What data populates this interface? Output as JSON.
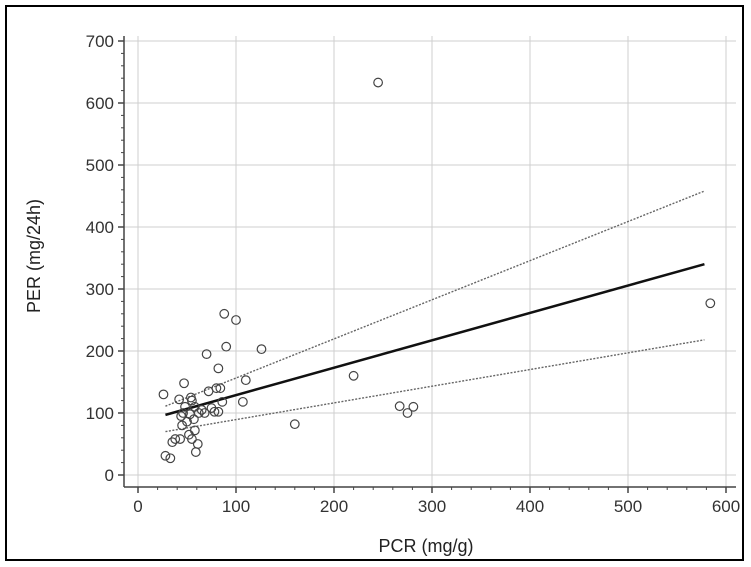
{
  "chart_data": {
    "type": "scatter",
    "xlabel": "PCR (mg/g)",
    "ylabel": "PER (mg/24h)",
    "xlim": [
      -15,
      610
    ],
    "ylim": [
      -15,
      715
    ],
    "x_ticks": [
      0,
      100,
      200,
      300,
      400,
      500,
      600
    ],
    "y_ticks": [
      0,
      100,
      200,
      300,
      400,
      500,
      600,
      700
    ],
    "grid": true,
    "legend": "none",
    "points": [
      [
        26,
        130
      ],
      [
        28,
        31
      ],
      [
        33,
        27
      ],
      [
        35,
        53
      ],
      [
        38,
        58
      ],
      [
        42,
        122
      ],
      [
        43,
        58
      ],
      [
        44,
        95
      ],
      [
        45,
        80
      ],
      [
        46,
        100
      ],
      [
        47,
        148
      ],
      [
        48,
        110
      ],
      [
        50,
        86
      ],
      [
        52,
        65
      ],
      [
        53,
        98
      ],
      [
        54,
        125
      ],
      [
        55,
        120
      ],
      [
        55,
        58
      ],
      [
        57,
        90
      ],
      [
        58,
        110
      ],
      [
        58,
        72
      ],
      [
        59,
        37
      ],
      [
        61,
        50
      ],
      [
        62,
        100
      ],
      [
        65,
        105
      ],
      [
        68,
        100
      ],
      [
        70,
        195
      ],
      [
        72,
        135
      ],
      [
        75,
        108
      ],
      [
        78,
        102
      ],
      [
        80,
        140
      ],
      [
        82,
        102
      ],
      [
        82,
        172
      ],
      [
        84,
        140
      ],
      [
        86,
        118
      ],
      [
        88,
        260
      ],
      [
        90,
        207
      ],
      [
        100,
        250
      ],
      [
        107,
        118
      ],
      [
        110,
        153
      ],
      [
        126,
        203
      ],
      [
        160,
        82
      ],
      [
        220,
        160
      ],
      [
        245,
        633
      ],
      [
        267,
        111
      ],
      [
        275,
        100
      ],
      [
        281,
        110
      ],
      [
        584,
        277
      ]
    ],
    "fit_line": {
      "x": [
        28,
        578
      ],
      "y": [
        97,
        340
      ]
    },
    "ci_upper": {
      "x": [
        28,
        578
      ],
      "y": [
        111,
        458
      ]
    },
    "ci_lower": {
      "x": [
        28,
        578
      ],
      "y": [
        70,
        218
      ]
    }
  }
}
